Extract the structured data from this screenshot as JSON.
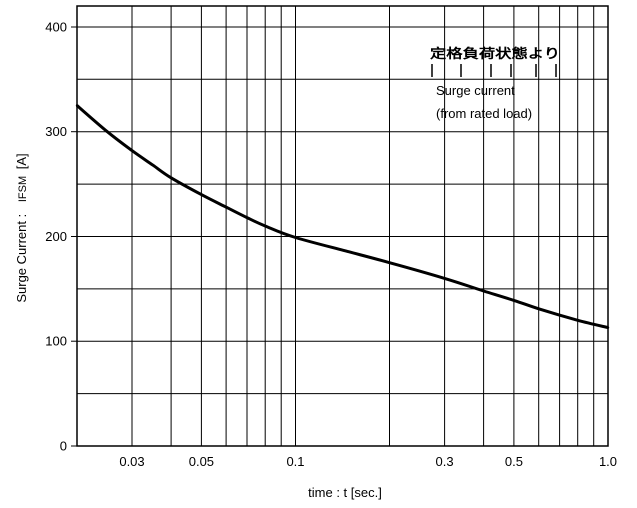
{
  "chart_data": {
    "type": "line",
    "xlabel": "time : t [sec.]",
    "ylabel_main": "Surge Current :",
    "ylabel_sym": "IFSM",
    "ylabel_unit": "[A]",
    "x_scale": "log",
    "xlim": [
      0.02,
      1.0
    ],
    "ylim": [
      0,
      420
    ],
    "x_ticks": [
      0.03,
      0.05,
      0.1,
      0.3,
      0.5,
      1.0
    ],
    "x_tick_labels": [
      "0.03",
      "0.05",
      "0.1",
      "0.3",
      "0.5",
      "1.0"
    ],
    "y_ticks": [
      0,
      100,
      200,
      300,
      400
    ],
    "y_tick_labels": [
      "0",
      "100",
      "200",
      "300",
      "400"
    ],
    "grid": true,
    "series": [
      {
        "x": [
          0.02,
          0.025,
          0.03,
          0.035,
          0.04,
          0.05,
          0.06,
          0.07,
          0.08,
          0.1,
          0.15,
          0.2,
          0.3,
          0.4,
          0.5,
          0.6,
          0.8,
          1.0
        ],
        "y": [
          325,
          300,
          282,
          268,
          256,
          240,
          228,
          218,
          210,
          199,
          185,
          175,
          160,
          148,
          139,
          131,
          120,
          113
        ]
      }
    ],
    "annotations": {
      "jp": "定格負荷状態より",
      "en_line1": "Surge current",
      "en_line2": "(from rated load)"
    }
  }
}
